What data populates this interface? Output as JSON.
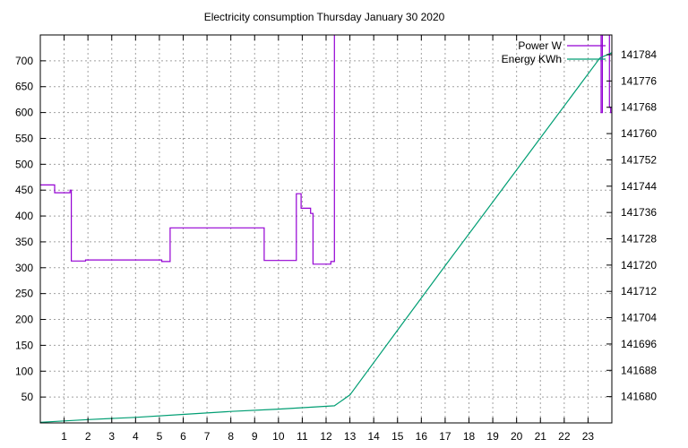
{
  "colors": {
    "power": "#9400d3",
    "energy": "#009e73",
    "grid": "#a0a0a0",
    "axis": "#000000"
  },
  "chart_data": {
    "type": "line",
    "title": "Electricity consumption Thursday January 30 2020",
    "grid": true,
    "legend_position": "top-right",
    "x": {
      "range": [
        0,
        24
      ],
      "ticks": [
        1,
        2,
        3,
        4,
        5,
        6,
        7,
        8,
        9,
        10,
        11,
        12,
        13,
        14,
        15,
        16,
        17,
        18,
        19,
        20,
        21,
        22,
        23
      ],
      "tick_labels": [
        "1",
        "2",
        "3",
        "4",
        "5",
        "6",
        "7",
        "8",
        "9",
        "10",
        "11",
        "12",
        "13",
        "14",
        "15",
        "16",
        "17",
        "18",
        "19",
        "20",
        "21",
        "22",
        "23"
      ]
    },
    "y_left": {
      "range": [
        0,
        750
      ],
      "ticks": [
        50,
        100,
        150,
        200,
        250,
        300,
        350,
        400,
        450,
        500,
        550,
        600,
        650,
        700
      ],
      "tick_labels": [
        "50",
        "100",
        "150",
        "200",
        "250",
        "300",
        "350",
        "400",
        "450",
        "500",
        "550",
        "600",
        "650",
        "700"
      ]
    },
    "y_right": {
      "range": [
        141672,
        141790
      ],
      "ticks": [
        141680,
        141688,
        141696,
        141704,
        141712,
        141720,
        141728,
        141736,
        141744,
        141752,
        141760,
        141768,
        141776,
        141784
      ],
      "tick_labels": [
        "141680",
        "141688",
        "141696",
        "141704",
        "141712",
        "141720",
        "141728",
        "141736",
        "141744",
        "141752",
        "141760",
        "141768",
        "141776",
        "141784"
      ]
    },
    "series": [
      {
        "name": "Power W",
        "axis": "left",
        "step": true,
        "x": [
          0,
          0.6,
          0.6,
          1.25,
          1.25,
          1.3,
          1.3,
          1.9,
          1.9,
          5.1,
          5.1,
          5.45,
          5.45,
          9.4,
          9.4,
          10.75,
          10.75,
          10.95,
          10.95,
          11.35,
          11.35,
          11.45,
          11.45,
          12.2,
          12.2,
          12.35,
          12.35
        ],
        "y": [
          460,
          460,
          445,
          445,
          450,
          450,
          313,
          313,
          315,
          315,
          312,
          312,
          377,
          377,
          314,
          314,
          443,
          443,
          415,
          415,
          405,
          405,
          307,
          307,
          312,
          312,
          750
        ]
      },
      {
        "name": "Power W",
        "axis": "left",
        "step": true,
        "x": [
          23.55,
          23.55,
          23.6,
          23.6,
          23.9,
          23.9,
          23.95,
          23.95,
          24
        ],
        "y": [
          750,
          600,
          600,
          750,
          750,
          610,
          610,
          600,
          600
        ]
      },
      {
        "name": "Energy KWh",
        "axis": "right",
        "step": false,
        "x": [
          0,
          2,
          4,
          6,
          8,
          10,
          12.35,
          13,
          15,
          17,
          19,
          21,
          23.5,
          24
        ],
        "y": [
          141672.2,
          141673.0,
          141673.7,
          141674.6,
          141675.5,
          141676.2,
          141677.2,
          141680.5,
          141700.2,
          141719.8,
          141739.2,
          141758.7,
          141783.0,
          141784.6
        ]
      }
    ]
  }
}
